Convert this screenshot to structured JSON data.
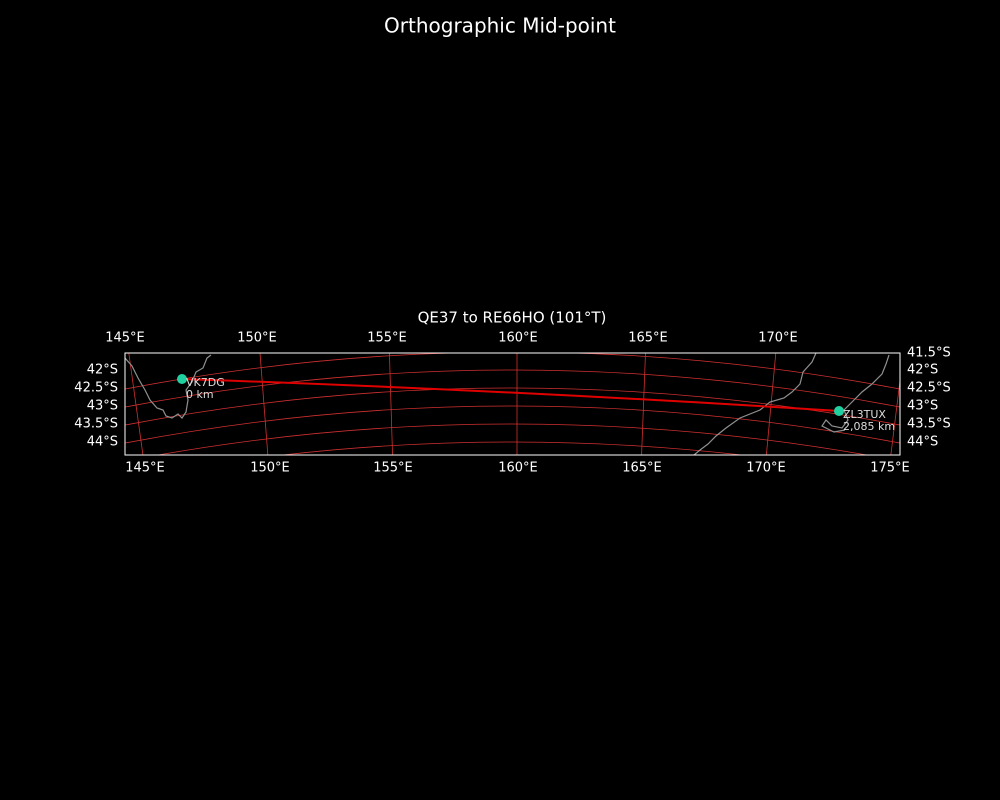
{
  "title": "Orthographic Mid-point",
  "map": {
    "title": "QE37 to RE66HO (101°T)",
    "top_lon_labels": [
      "145°E",
      "150°E",
      "155°E",
      "160°E",
      "165°E",
      "170°E"
    ],
    "bottom_lon_labels": [
      "145°E",
      "150°E",
      "155°E",
      "160°E",
      "165°E",
      "170°E",
      "175°E"
    ],
    "left_lat_labels": [
      "42°S",
      "42.5°S",
      "43°S",
      "43.5°S",
      "44°S"
    ],
    "right_lat_labels": [
      "41.5°S",
      "42°S",
      "42.5°S",
      "43°S",
      "43.5°S",
      "44°S"
    ],
    "stations": [
      {
        "name": "VK7DG",
        "distance": "0 km"
      },
      {
        "name": "ZL3TUX",
        "distance": "2,085 km"
      }
    ]
  }
}
